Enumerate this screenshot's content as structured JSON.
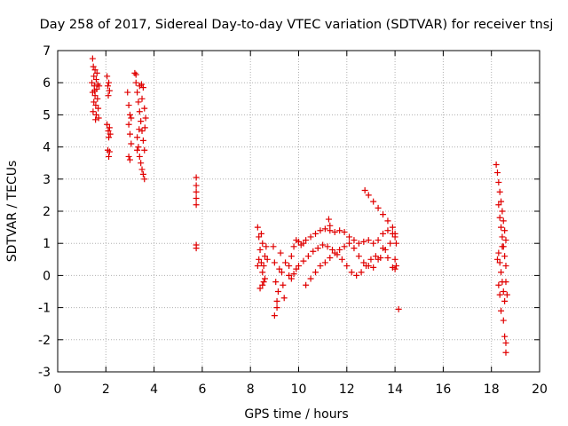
{
  "chart_data": {
    "type": "scatter",
    "title": "Day 258 of 2017, Sidereal Day-to-day VTEC variation (SDTVAR) for receiver tnsj",
    "xlabel": "GPS time / hours",
    "ylabel": "SDTVAR / TECUs",
    "xlim": [
      0,
      20
    ],
    "ylim": [
      -3,
      7
    ],
    "xticks": [
      "0",
      "2",
      "4",
      "6",
      "8",
      "10",
      "12",
      "14",
      "16",
      "18",
      "20"
    ],
    "yticks": [
      "-3",
      "-2",
      "-1",
      "0",
      "1",
      "2",
      "3",
      "4",
      "5",
      "6",
      "7"
    ],
    "grid": true,
    "marker": "plus",
    "marker_color": "#e00000",
    "series": [
      {
        "name": "SDTVAR",
        "points": [
          [
            1.45,
            6.75
          ],
          [
            1.48,
            6.5
          ],
          [
            1.5,
            6.2
          ],
          [
            1.52,
            5.9
          ],
          [
            1.55,
            5.6
          ],
          [
            1.58,
            5.3
          ],
          [
            1.6,
            5.0
          ],
          [
            1.62,
            5.8
          ],
          [
            1.5,
            5.4
          ],
          [
            1.45,
            5.7
          ],
          [
            1.55,
            6.4
          ],
          [
            1.6,
            6.1
          ],
          [
            1.65,
            5.5
          ],
          [
            1.68,
            5.2
          ],
          [
            1.7,
            4.9
          ],
          [
            1.72,
            5.9
          ],
          [
            1.42,
            6.0
          ],
          [
            1.47,
            5.1
          ],
          [
            1.57,
            4.85
          ],
          [
            1.63,
            6.3
          ],
          [
            1.53,
            5.75
          ],
          [
            1.66,
            5.95
          ],
          [
            2.05,
            6.2
          ],
          [
            2.08,
            5.9
          ],
          [
            2.1,
            5.6
          ],
          [
            2.12,
            6.0
          ],
          [
            2.15,
            5.75
          ],
          [
            2.05,
            4.7
          ],
          [
            2.1,
            4.5
          ],
          [
            2.12,
            4.3
          ],
          [
            2.15,
            4.6
          ],
          [
            2.18,
            4.4
          ],
          [
            2.08,
            3.9
          ],
          [
            2.12,
            3.7
          ],
          [
            2.15,
            3.85
          ],
          [
            2.9,
            5.7
          ],
          [
            2.95,
            5.3
          ],
          [
            3.0,
            5.0
          ],
          [
            2.95,
            4.7
          ],
          [
            3.0,
            4.4
          ],
          [
            3.05,
            4.1
          ],
          [
            2.95,
            3.7
          ],
          [
            3.0,
            3.6
          ],
          [
            3.05,
            4.9
          ],
          [
            3.2,
            6.3
          ],
          [
            3.25,
            6.0
          ],
          [
            3.3,
            5.7
          ],
          [
            3.35,
            5.4
          ],
          [
            3.4,
            5.1
          ],
          [
            3.45,
            4.8
          ],
          [
            3.5,
            4.5
          ],
          [
            3.55,
            4.2
          ],
          [
            3.6,
            3.9
          ],
          [
            3.4,
            5.9
          ],
          [
            3.5,
            5.5
          ],
          [
            3.55,
            5.85
          ],
          [
            3.6,
            5.2
          ],
          [
            3.65,
            4.9
          ],
          [
            3.62,
            4.6
          ],
          [
            3.3,
            4.3
          ],
          [
            3.35,
            4.0
          ],
          [
            3.4,
            3.7
          ],
          [
            3.45,
            3.5
          ],
          [
            3.5,
            3.3
          ],
          [
            3.55,
            3.15
          ],
          [
            3.6,
            3.0
          ],
          [
            3.3,
            3.9
          ],
          [
            3.25,
            6.25
          ],
          [
            3.38,
            4.55
          ],
          [
            3.48,
            5.95
          ],
          [
            5.75,
            3.05
          ],
          [
            5.75,
            2.8
          ],
          [
            5.75,
            2.6
          ],
          [
            5.75,
            2.4
          ],
          [
            5.75,
            2.2
          ],
          [
            5.75,
            0.95
          ],
          [
            5.75,
            0.85
          ],
          [
            8.3,
            1.5
          ],
          [
            8.35,
            1.2
          ],
          [
            8.4,
            0.8
          ],
          [
            8.45,
            0.4
          ],
          [
            8.5,
            0.1
          ],
          [
            8.55,
            -0.2
          ],
          [
            8.6,
            0.6
          ],
          [
            8.4,
            -0.4
          ],
          [
            8.5,
            1.0
          ],
          [
            8.55,
            0.3
          ],
          [
            8.6,
            -0.1
          ],
          [
            8.3,
            0.3
          ],
          [
            8.35,
            0.5
          ],
          [
            8.45,
            1.3
          ],
          [
            8.65,
            0.9
          ],
          [
            8.7,
            0.5
          ],
          [
            8.5,
            -0.3
          ],
          [
            8.95,
            0.9
          ],
          [
            9.0,
            0.4
          ],
          [
            9.05,
            -0.2
          ],
          [
            9.1,
            -0.8
          ],
          [
            9.0,
            -1.25
          ],
          [
            9.1,
            -1.0
          ],
          [
            9.15,
            -0.5
          ],
          [
            9.2,
            0.2
          ],
          [
            9.25,
            0.7
          ],
          [
            9.3,
            0.1
          ],
          [
            9.35,
            -0.3
          ],
          [
            9.4,
            -0.7
          ],
          [
            9.45,
            0.4
          ],
          [
            9.6,
            0.3
          ],
          [
            9.7,
            0.6
          ],
          [
            9.8,
            0.9
          ],
          [
            9.9,
            1.1
          ],
          [
            10.0,
            1.05
          ],
          [
            10.1,
            0.95
          ],
          [
            10.2,
            1.0
          ],
          [
            10.3,
            1.1
          ],
          [
            10.5,
            1.2
          ],
          [
            10.7,
            1.3
          ],
          [
            10.9,
            1.4
          ],
          [
            11.1,
            1.45
          ],
          [
            11.3,
            1.4
          ],
          [
            11.5,
            1.35
          ],
          [
            11.7,
            1.4
          ],
          [
            11.9,
            1.35
          ],
          [
            12.1,
            1.2
          ],
          [
            12.3,
            1.1
          ],
          [
            12.5,
            1.0
          ],
          [
            12.7,
            1.05
          ],
          [
            12.9,
            1.1
          ],
          [
            13.1,
            1.0
          ],
          [
            13.3,
            1.1
          ],
          [
            13.5,
            1.3
          ],
          [
            13.7,
            1.4
          ],
          [
            13.9,
            1.3
          ],
          [
            14.0,
            1.2
          ],
          [
            14.05,
            1.0
          ],
          [
            9.6,
            0.0
          ],
          [
            9.7,
            -0.1
          ],
          [
            9.8,
            0.05
          ],
          [
            9.9,
            0.2
          ],
          [
            10.0,
            0.3
          ],
          [
            10.2,
            0.45
          ],
          [
            10.4,
            0.6
          ],
          [
            10.6,
            0.75
          ],
          [
            10.8,
            0.85
          ],
          [
            11.0,
            0.95
          ],
          [
            11.2,
            0.9
          ],
          [
            11.4,
            0.8
          ],
          [
            11.6,
            0.65
          ],
          [
            11.8,
            0.5
          ],
          [
            12.0,
            0.3
          ],
          [
            12.2,
            0.1
          ],
          [
            12.4,
            0.0
          ],
          [
            12.6,
            0.1
          ],
          [
            12.8,
            0.3
          ],
          [
            13.0,
            0.5
          ],
          [
            13.2,
            0.6
          ],
          [
            13.4,
            0.55
          ],
          [
            13.6,
            0.8
          ],
          [
            13.8,
            1.0
          ],
          [
            14.0,
            0.5
          ],
          [
            14.05,
            0.3
          ],
          [
            10.3,
            -0.3
          ],
          [
            10.5,
            -0.1
          ],
          [
            10.7,
            0.1
          ],
          [
            10.9,
            0.3
          ],
          [
            11.1,
            0.4
          ],
          [
            11.3,
            0.55
          ],
          [
            11.5,
            0.7
          ],
          [
            11.7,
            0.8
          ],
          [
            11.9,
            0.9
          ],
          [
            12.1,
            1.0
          ],
          [
            12.3,
            0.85
          ],
          [
            12.5,
            0.6
          ],
          [
            12.7,
            0.4
          ],
          [
            12.9,
            0.3
          ],
          [
            13.1,
            0.25
          ],
          [
            13.3,
            0.5
          ],
          [
            13.5,
            0.85
          ],
          [
            13.7,
            0.55
          ],
          [
            13.9,
            0.25
          ],
          [
            14.0,
            0.2
          ],
          [
            11.25,
            1.75
          ],
          [
            11.3,
            1.55
          ],
          [
            12.75,
            2.65
          ],
          [
            12.9,
            2.5
          ],
          [
            13.1,
            2.3
          ],
          [
            13.3,
            2.1
          ],
          [
            13.5,
            1.9
          ],
          [
            13.7,
            1.7
          ],
          [
            13.9,
            1.5
          ],
          [
            14.0,
            1.3
          ],
          [
            14.15,
            -1.05
          ],
          [
            18.2,
            3.45
          ],
          [
            18.25,
            3.2
          ],
          [
            18.3,
            2.9
          ],
          [
            18.35,
            2.6
          ],
          [
            18.4,
            2.3
          ],
          [
            18.45,
            2.0
          ],
          [
            18.5,
            1.7
          ],
          [
            18.55,
            1.4
          ],
          [
            18.6,
            1.1
          ],
          [
            18.3,
            2.2
          ],
          [
            18.35,
            1.8
          ],
          [
            18.4,
            1.5
          ],
          [
            18.45,
            1.2
          ],
          [
            18.5,
            0.9
          ],
          [
            18.55,
            0.6
          ],
          [
            18.3,
            0.7
          ],
          [
            18.35,
            0.4
          ],
          [
            18.4,
            0.1
          ],
          [
            18.45,
            -0.2
          ],
          [
            18.5,
            -0.5
          ],
          [
            18.55,
            -0.8
          ],
          [
            18.3,
            -0.3
          ],
          [
            18.35,
            -0.6
          ],
          [
            18.4,
            -1.1
          ],
          [
            18.5,
            -1.4
          ],
          [
            18.55,
            -1.9
          ],
          [
            18.6,
            -2.4
          ],
          [
            18.6,
            -2.1
          ],
          [
            18.6,
            0.3
          ],
          [
            18.6,
            -0.2
          ],
          [
            18.65,
            -0.6
          ],
          [
            18.25,
            0.5
          ],
          [
            18.45,
            0.9
          ]
        ]
      }
    ]
  }
}
